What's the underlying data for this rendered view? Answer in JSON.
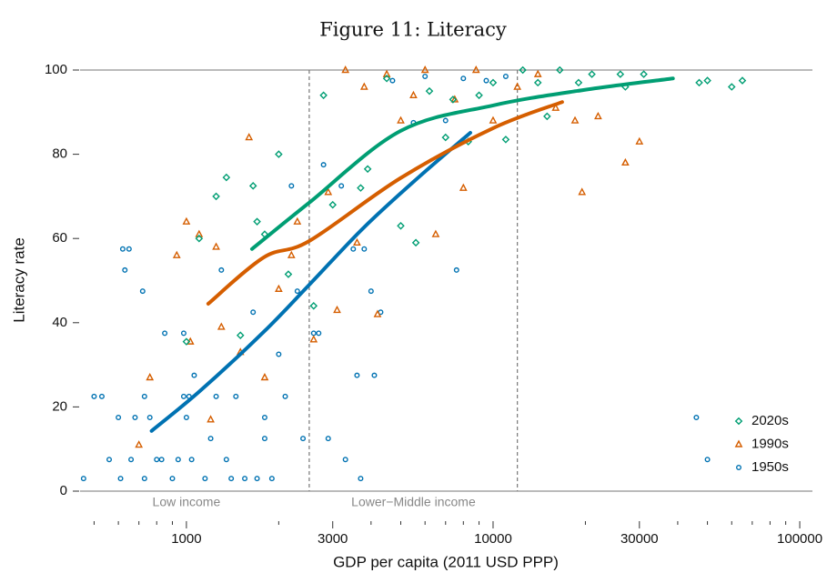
{
  "chart_data": {
    "type": "scatter",
    "title": "Figure 11: Literacy",
    "xlabel": "GDP per capita (2011 USD PPP)",
    "ylabel": "Literacy rate",
    "xscale": "log",
    "xlim": [
      450,
      110000
    ],
    "ylim": [
      0,
      100
    ],
    "xticks": [
      1000,
      3000,
      10000,
      30000,
      100000
    ],
    "xminorticks": [
      500,
      600,
      700,
      800,
      900,
      2000,
      4000,
      5000,
      6000,
      7000,
      8000,
      9000,
      20000,
      40000,
      50000,
      60000,
      70000,
      80000,
      90000
    ],
    "yticks": [
      0,
      20,
      40,
      60,
      80,
      100
    ],
    "legend": "lower right",
    "vlines": [
      2515,
      12000
    ],
    "annotations": [
      {
        "text": "Low income",
        "x": 1000
      },
      {
        "text": "Lower−Middle income",
        "x": 5500
      }
    ],
    "series": [
      {
        "name": "2020s",
        "color": "#009e73",
        "marker": "diamond",
        "x": [
          1000,
          1100,
          1250,
          1350,
          1500,
          1650,
          1700,
          1800,
          2000,
          2150,
          2600,
          2800,
          3000,
          3700,
          3900,
          4500,
          5000,
          5600,
          6200,
          7000,
          7400,
          8300,
          9000,
          10000,
          11000,
          12500,
          14000,
          15000,
          16500,
          19000,
          21000,
          26000,
          27000,
          31000,
          47000,
          50000,
          60000,
          65000
        ],
        "values": [
          35.5,
          60,
          70,
          74.5,
          37,
          72.5,
          64,
          61,
          80,
          51.5,
          44,
          94,
          68,
          72,
          76.5,
          98,
          63,
          59,
          95,
          84,
          93,
          83,
          94,
          97,
          83.5,
          100,
          97,
          89,
          100,
          97,
          99,
          99,
          96,
          99,
          97,
          97.5,
          96,
          97.5
        ],
        "fit_x": [
          1636,
          2515,
          4980,
          10000,
          19500,
          38600
        ],
        "fit_values": [
          57.5,
          68.5,
          85.5,
          91.6,
          95.2,
          98
        ]
      },
      {
        "name": "1990s",
        "color": "#d55e00",
        "marker": "triangle",
        "x": [
          700,
          760,
          930,
          1000,
          1030,
          1100,
          1200,
          1250,
          1300,
          1500,
          1600,
          1800,
          2000,
          2200,
          2300,
          2600,
          2900,
          3100,
          3300,
          3600,
          3800,
          4200,
          4500,
          5000,
          5500,
          6000,
          6500,
          7500,
          8000,
          8800,
          10000,
          12000,
          14000,
          16000,
          18500,
          19500,
          22000,
          27000,
          30000
        ],
        "values": [
          11,
          27,
          56,
          64,
          35.5,
          61,
          17,
          58,
          39,
          33,
          84,
          27,
          48,
          56,
          64,
          36,
          71,
          43,
          100,
          59,
          96,
          42,
          99,
          88,
          94,
          100,
          61,
          93,
          72,
          100,
          88,
          96,
          99,
          91,
          88,
          71,
          89,
          78,
          83
        ],
        "fit_x": [
          1178,
          1786,
          2515,
          4980,
          10000,
          16800
        ],
        "fit_values": [
          44.5,
          55.5,
          59.4,
          74.3,
          86.2,
          92.4
        ]
      },
      {
        "name": "1950s",
        "color": "#0072b2",
        "marker": "circle",
        "x": [
          462,
          500,
          530,
          560,
          600,
          610,
          620,
          630,
          650,
          660,
          680,
          720,
          730,
          730,
          760,
          800,
          830,
          850,
          900,
          940,
          980,
          980,
          1000,
          1020,
          1040,
          1060,
          1150,
          1200,
          1250,
          1300,
          1350,
          1400,
          1450,
          1550,
          1650,
          1700,
          1800,
          1800,
          1900,
          2000,
          2100,
          2200,
          2300,
          2400,
          2600,
          2700,
          2800,
          2900,
          3200,
          3300,
          3500,
          3600,
          3700,
          3800,
          4000,
          4100,
          4300,
          4700,
          5500,
          6000,
          7000,
          7600,
          8000,
          9500,
          11000,
          46000,
          50000
        ],
        "values": [
          3,
          22.5,
          22.5,
          7.5,
          17.5,
          3,
          57.5,
          52.5,
          57.5,
          7.5,
          17.5,
          47.5,
          3,
          22.5,
          17.5,
          7.5,
          7.5,
          37.5,
          3,
          7.5,
          37.5,
          22.5,
          17.5,
          22.5,
          7.5,
          27.5,
          3,
          12.5,
          22.5,
          52.5,
          7.5,
          3,
          22.5,
          3,
          42.5,
          3,
          17.5,
          12.5,
          3,
          32.5,
          22.5,
          72.5,
          47.5,
          12.5,
          37.5,
          37.5,
          77.5,
          12.5,
          72.5,
          7.5,
          57.5,
          27.5,
          3,
          57.5,
          47.5,
          27.5,
          42.5,
          97.5,
          87.5,
          98.5,
          88,
          52.5,
          98,
          97.5,
          98.5,
          17.5,
          7.5
        ],
        "fit_x": [
          770,
          1108,
          1786,
          2515,
          3790,
          5710,
          8430
        ],
        "fit_values": [
          14.3,
          23.8,
          37.8,
          49,
          62.6,
          74.5,
          85.1
        ]
      }
    ]
  }
}
